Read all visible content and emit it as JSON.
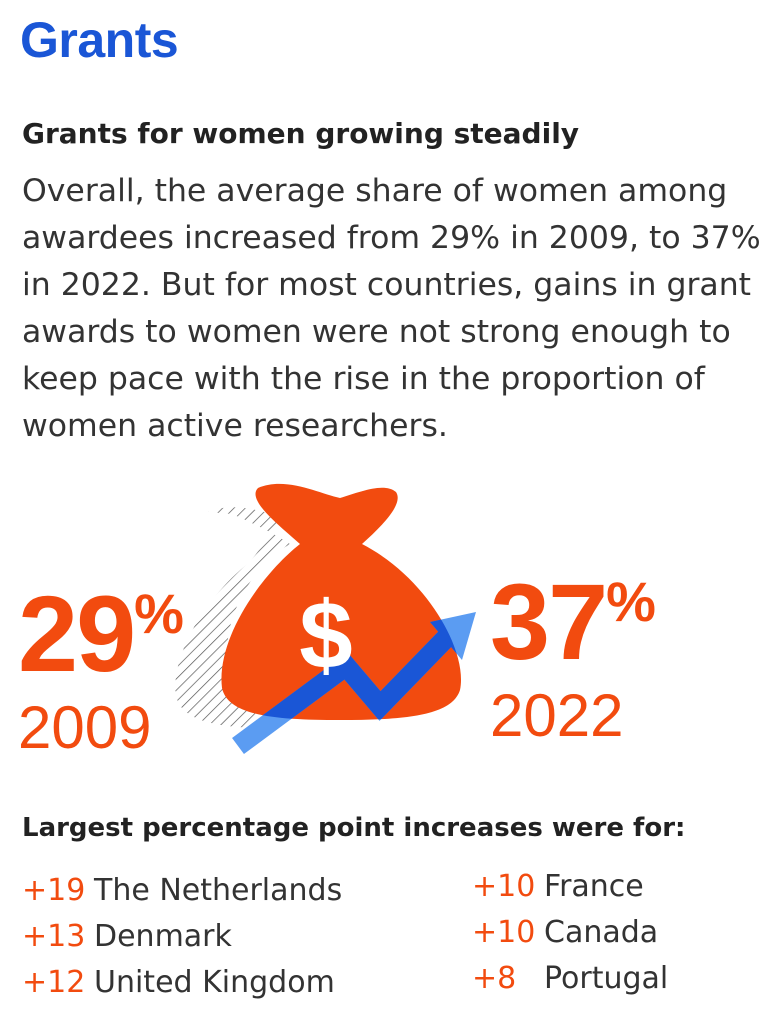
{
  "header": {
    "title": "Grants"
  },
  "subtitle": "Grants for women growing steadily",
  "body": "Overall, the average share of women among awardees increased from 29% in 2009, to 37% in 2022. But for most countries, gains in grant awards to women were not strong enough to keep pace with the rise in the proportion of women active researchers.",
  "stats": {
    "start": {
      "value": "29",
      "sign": "%",
      "year": "2009"
    },
    "end": {
      "value": "37",
      "sign": "%",
      "year": "2022"
    }
  },
  "graphic": {
    "bag_icon": "money-bag-icon",
    "bag_symbol": "$",
    "arrow_icon": "trend-up-arrow-icon",
    "bag_color": "#f24b0f",
    "arrow_color": "#5b9cf2",
    "overlap_color": "#1a56d6"
  },
  "increases": {
    "title": "Largest percentage point increases were for:",
    "left": [
      {
        "value": "+19",
        "country": "The Netherlands"
      },
      {
        "value": "+13",
        "country": "Denmark"
      },
      {
        "value": "+12",
        "country": "United Kingdom"
      }
    ],
    "right": [
      {
        "value": "+10",
        "country": "France"
      },
      {
        "value": "+10",
        "country": "Canada"
      },
      {
        "value": "+8",
        "country": "Portugal"
      }
    ]
  },
  "colors": {
    "accent_blue": "#1a56d6",
    "accent_orange": "#f24b0f",
    "text": "#333333"
  }
}
